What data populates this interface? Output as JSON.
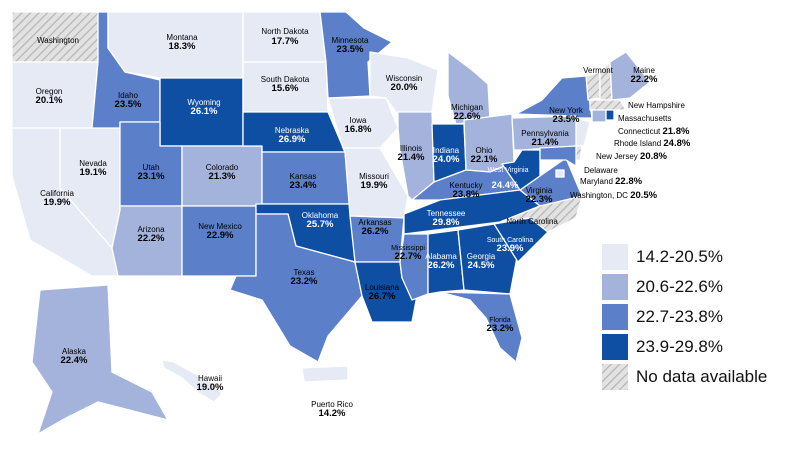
{
  "legend": {
    "items": [
      {
        "label": "14.2-20.5%",
        "color": "#e6eaf5"
      },
      {
        "label": "20.6-22.6%",
        "color": "#a3b3dc"
      },
      {
        "label": "22.7-23.8%",
        "color": "#5b7fc9"
      },
      {
        "label": "23.9-29.8%",
        "color": "#0f4fa3"
      },
      {
        "label": "No data available",
        "color": "hatched"
      }
    ]
  },
  "states": [
    {
      "name": "Washington",
      "value": ""
    },
    {
      "name": "Oregon",
      "value": "20.1%"
    },
    {
      "name": "California",
      "value": "19.9%"
    },
    {
      "name": "Nevada",
      "value": "19.1%"
    },
    {
      "name": "Idaho",
      "value": "23.5%"
    },
    {
      "name": "Montana",
      "value": "18.3%"
    },
    {
      "name": "Wyoming",
      "value": "26.1%"
    },
    {
      "name": "Utah",
      "value": "23.1%"
    },
    {
      "name": "Arizona",
      "value": "22.2%"
    },
    {
      "name": "Colorado",
      "value": "21.3%"
    },
    {
      "name": "New Mexico",
      "value": "22.9%"
    },
    {
      "name": "North Dakota",
      "value": "17.7%"
    },
    {
      "name": "South Dakota",
      "value": "15.6%"
    },
    {
      "name": "Nebraska",
      "value": "26.9%"
    },
    {
      "name": "Kansas",
      "value": "23.4%"
    },
    {
      "name": "Oklahoma",
      "value": "25.7%"
    },
    {
      "name": "Texas",
      "value": "23.2%"
    },
    {
      "name": "Minnesota",
      "value": "23.5%"
    },
    {
      "name": "Iowa",
      "value": "16.8%"
    },
    {
      "name": "Missouri",
      "value": "19.9%"
    },
    {
      "name": "Arkansas",
      "value": "26.2%"
    },
    {
      "name": "Louisiana",
      "value": "26.7%"
    },
    {
      "name": "Wisconsin",
      "value": "20.0%"
    },
    {
      "name": "Illinois",
      "value": "21.4%"
    },
    {
      "name": "Michigan",
      "value": "22.6%"
    },
    {
      "name": "Indiana",
      "value": "24.0%"
    },
    {
      "name": "Ohio",
      "value": "22.1%"
    },
    {
      "name": "Kentucky",
      "value": "23.8%"
    },
    {
      "name": "Tennessee",
      "value": "29.8%"
    },
    {
      "name": "Mississippi",
      "value": "22.7%"
    },
    {
      "name": "Alabama",
      "value": "26.2%"
    },
    {
      "name": "Georgia",
      "value": "24.5%"
    },
    {
      "name": "Florida",
      "value": "23.2%"
    },
    {
      "name": "South Carolina",
      "value": "23.9%"
    },
    {
      "name": "North Carolina",
      "value": ""
    },
    {
      "name": "Virginia",
      "value": "22.3%"
    },
    {
      "name": "West Virginia",
      "value": "24.4%"
    },
    {
      "name": "Pennsylvania",
      "value": "21.4%"
    },
    {
      "name": "New York",
      "value": "23.5%"
    },
    {
      "name": "Vermont",
      "value": ""
    },
    {
      "name": "New Hampshire",
      "value": ""
    },
    {
      "name": "Maine",
      "value": "22.2%"
    },
    {
      "name": "Massachusetts",
      "value": ""
    },
    {
      "name": "Connecticut",
      "value": "21.8%"
    },
    {
      "name": "Rhode Island",
      "value": "24.8%"
    },
    {
      "name": "New Jersey",
      "value": "20.8%"
    },
    {
      "name": "Delaware",
      "value": ""
    },
    {
      "name": "Maryland",
      "value": "22.8%"
    },
    {
      "name": "Washington, DC",
      "value": "20.5%"
    },
    {
      "name": "Alaska",
      "value": "22.4%"
    },
    {
      "name": "Hawaii",
      "value": "19.0%"
    },
    {
      "name": "Puerto Rico",
      "value": "14.2%"
    }
  ]
}
